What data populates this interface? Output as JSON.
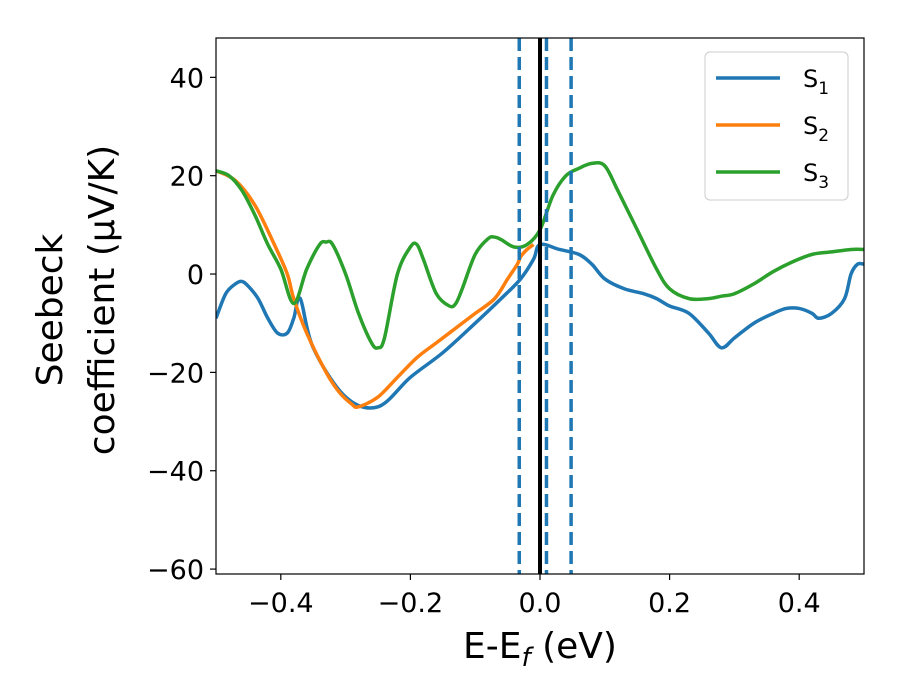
{
  "chart_data": {
    "type": "line",
    "xlabel": {
      "main": "E-E",
      "sub": "f",
      "suffix": " (eV)"
    },
    "ylabel": {
      "line1": "Seebeck",
      "line2": "coefficient  (μV/K)"
    },
    "xlim": [
      -0.5,
      0.5
    ],
    "ylim": [
      -61,
      48
    ],
    "xticks": [
      -0.4,
      -0.2,
      0.0,
      0.2,
      0.4
    ],
    "xtick_labels": [
      "−0.4",
      "−0.2",
      "0.0",
      "0.2",
      "0.4"
    ],
    "yticks": [
      40,
      20,
      0,
      -20,
      -40,
      -60
    ],
    "ytick_labels": [
      "40",
      "20",
      "0",
      "−20",
      "−40",
      "−60"
    ],
    "grid": false,
    "legend_position": "top-right",
    "vlines": [
      {
        "x": -0.032,
        "style": "dashed",
        "color": "#1f77b4"
      },
      {
        "x": 0.01,
        "style": "dashed",
        "color": "#1f77b4"
      },
      {
        "x": 0.048,
        "style": "dashed",
        "color": "#1f77b4"
      },
      {
        "x": 0.0,
        "style": "solid",
        "color": "#000000"
      }
    ],
    "series": [
      {
        "name": "S",
        "name_sub": "1",
        "color": "#1f77b4",
        "x": [
          -0.5,
          -0.485,
          -0.47,
          -0.46,
          -0.45,
          -0.435,
          -0.42,
          -0.405,
          -0.39,
          -0.38,
          -0.37,
          -0.35,
          -0.3,
          -0.25,
          -0.2,
          -0.15,
          -0.1,
          -0.06,
          -0.03,
          -0.01,
          0.0,
          0.03,
          0.06,
          0.08,
          0.1,
          0.13,
          0.16,
          0.18,
          0.2,
          0.23,
          0.26,
          0.28,
          0.3,
          0.33,
          0.36,
          0.38,
          0.4,
          0.42,
          0.43,
          0.45,
          0.47,
          0.48,
          0.49,
          0.5
        ],
        "y": [
          -9,
          -4,
          -2,
          -1.5,
          -2.5,
          -5,
          -9,
          -12,
          -12,
          -9,
          -5,
          -15,
          -25,
          -27,
          -21,
          -16,
          -10,
          -5,
          -1,
          3,
          6,
          5,
          4,
          2,
          -1,
          -3,
          -4,
          -5,
          -6.5,
          -8,
          -12,
          -15,
          -13,
          -10,
          -8,
          -7,
          -7,
          -8,
          -9,
          -8,
          -5,
          0,
          2,
          2
        ]
      },
      {
        "name": "S",
        "name_sub": "2",
        "color": "#ff7f0e",
        "x": [
          -0.5,
          -0.47,
          -0.44,
          -0.41,
          -0.39,
          -0.38,
          -0.36,
          -0.33,
          -0.31,
          -0.29,
          -0.28,
          -0.25,
          -0.22,
          -0.19,
          -0.16,
          -0.13,
          -0.1,
          -0.07,
          -0.05,
          -0.035,
          -0.03,
          -0.02,
          -0.01
        ],
        "y": [
          21,
          19,
          14,
          6,
          0,
          -5,
          -12,
          -20,
          -24,
          -26.5,
          -27,
          -25,
          -21,
          -17,
          -14,
          -11,
          -8,
          -5,
          -1,
          2,
          3.5,
          5,
          6
        ]
      },
      {
        "name": "S",
        "name_sub": "3",
        "color": "#2ca02c",
        "x": [
          -0.5,
          -0.48,
          -0.46,
          -0.44,
          -0.42,
          -0.4,
          -0.38,
          -0.36,
          -0.34,
          -0.33,
          -0.32,
          -0.3,
          -0.28,
          -0.26,
          -0.25,
          -0.24,
          -0.22,
          -0.2,
          -0.19,
          -0.18,
          -0.16,
          -0.14,
          -0.13,
          -0.12,
          -0.1,
          -0.08,
          -0.07,
          -0.06,
          -0.04,
          -0.02,
          0.0,
          0.02,
          0.04,
          0.06,
          0.08,
          0.1,
          0.12,
          0.15,
          0.18,
          0.2,
          0.23,
          0.26,
          0.28,
          0.3,
          0.33,
          0.36,
          0.39,
          0.42,
          0.45,
          0.48,
          0.5
        ],
        "y": [
          21,
          20,
          17,
          12,
          6,
          1,
          -6,
          1,
          6,
          6.5,
          6,
          0,
          -8,
          -14,
          -15,
          -13,
          0,
          5.5,
          6,
          3,
          -4,
          -6.5,
          -6,
          -3,
          4,
          7.2,
          7.5,
          7,
          5.5,
          6,
          9,
          16,
          20,
          21.5,
          22.5,
          22,
          17,
          9,
          1,
          -3,
          -5,
          -5,
          -4.5,
          -4,
          -2,
          0.5,
          2.5,
          4,
          4.5,
          5,
          5
        ]
      }
    ]
  }
}
